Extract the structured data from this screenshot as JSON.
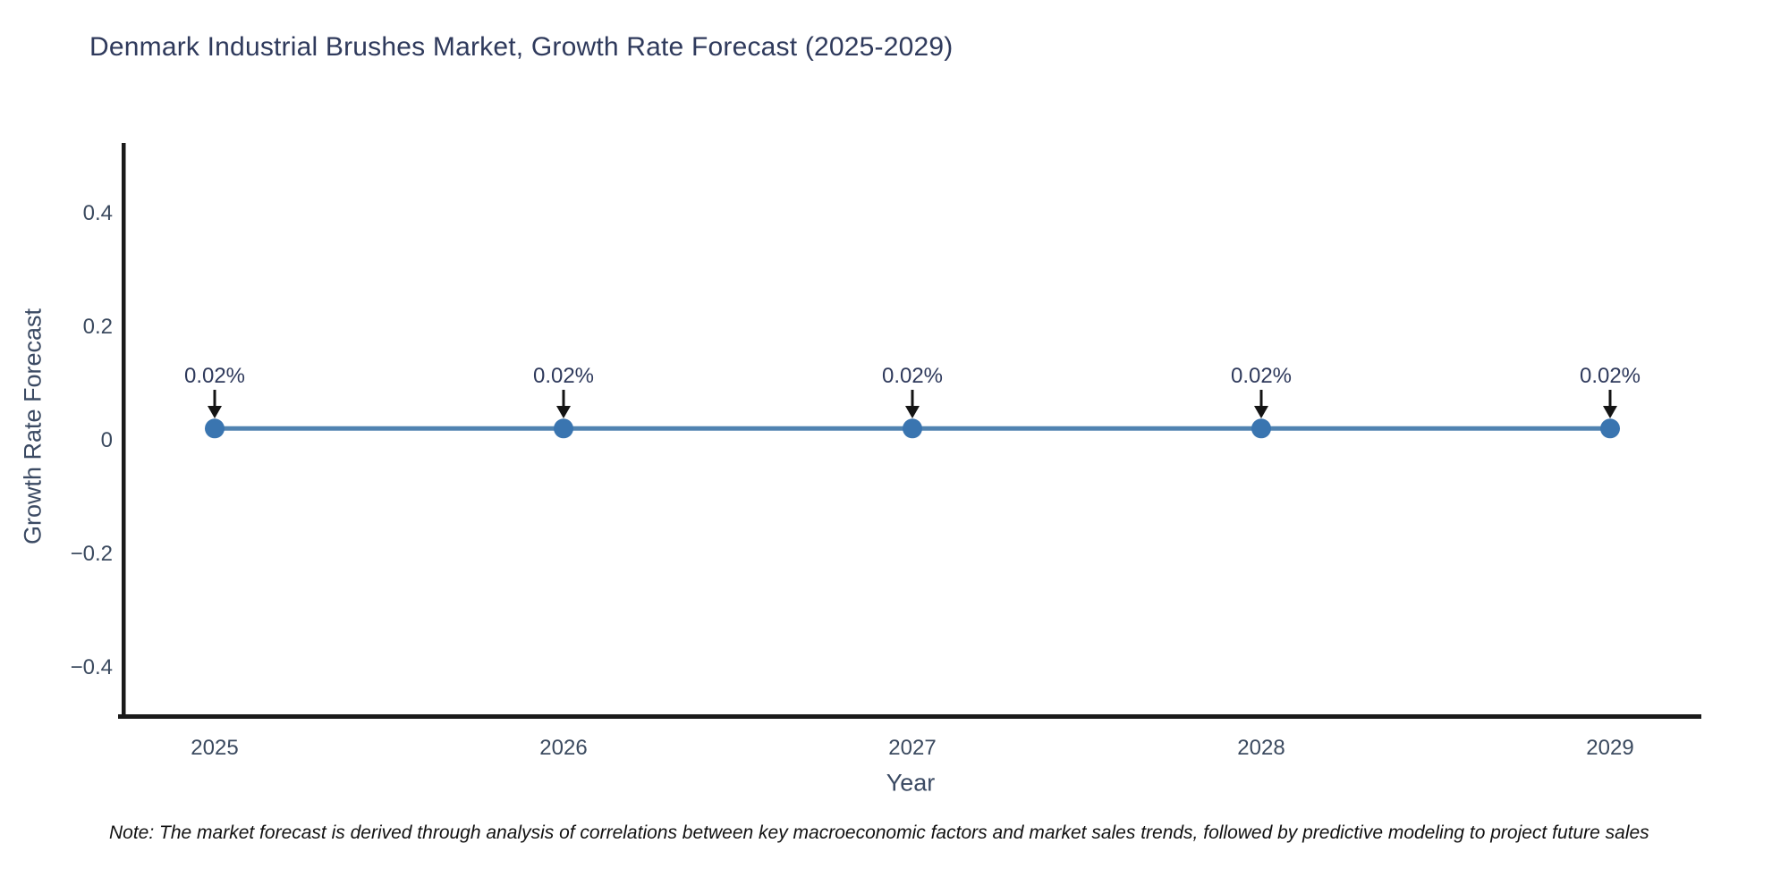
{
  "chart_data": {
    "type": "line",
    "title": "Denmark Industrial Brushes Market, Growth Rate Forecast (2025-2029)",
    "xlabel": "Year",
    "ylabel": "Growth Rate Forecast",
    "x": [
      2025,
      2026,
      2027,
      2028,
      2029
    ],
    "xtick_labels": [
      "2025",
      "2026",
      "2027",
      "2028",
      "2029"
    ],
    "series": [
      {
        "name": "Growth Rate Forecast",
        "values": [
          0.02,
          0.02,
          0.02,
          0.02,
          0.02
        ]
      }
    ],
    "point_labels": [
      "0.02%",
      "0.02%",
      "0.02%",
      "0.02%",
      "0.02%"
    ],
    "ytick_values": [
      0.4,
      0.2,
      0,
      -0.2,
      -0.4
    ],
    "ytick_labels": [
      "0.4",
      "0.2",
      "0",
      "−0.2",
      "−0.4"
    ],
    "ylim": [
      -0.49,
      0.52
    ],
    "grid": false,
    "legend": "none",
    "line_color": "#5083b1",
    "marker_color": "#3a75b0",
    "annotation_color": "#2f3a5c",
    "arrow_color": "#141414",
    "axis_color": "#1a1a1a"
  },
  "note": "Note: The market forecast is derived through analysis of correlations between key macroeconomic factors and market sales trends, followed by predictive modeling to project future sales"
}
